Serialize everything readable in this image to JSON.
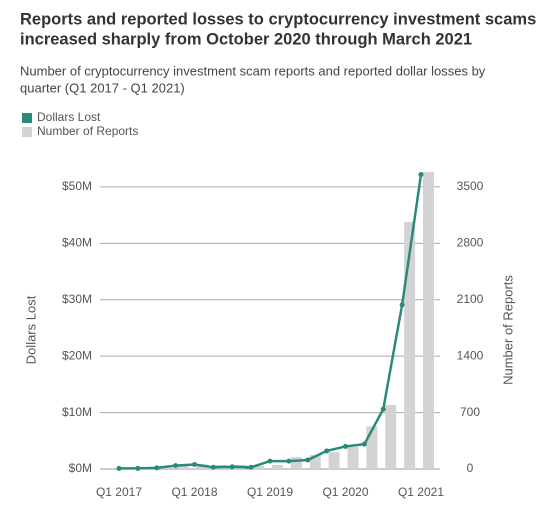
{
  "chart_data": {
    "type": "bar-line",
    "title": [
      "Reports and reported losses to cryptocurrency investment scams",
      "increased sharply from October 2020 through March 2021"
    ],
    "subtitle": [
      "Number of cryptocurrency investment scam reports and reported dollar losses by",
      "quarter (Q1 2017 - Q1 2021)"
    ],
    "categories": [
      "Q1 2017",
      null,
      null,
      null,
      "Q1 2018",
      null,
      null,
      null,
      "Q1 2019",
      null,
      null,
      null,
      "Q1 2020",
      null,
      null,
      null,
      "Q1 2021"
    ],
    "series": [
      {
        "name": "Dollars Lost",
        "color": "#2a8a7a",
        "kind": "line",
        "axis": "y",
        "values": [
          0.1,
          0.1,
          0.2,
          0.6,
          0.8,
          0.3,
          0.4,
          0.3,
          1.4,
          1.4,
          1.6,
          3.2,
          4.0,
          4.4,
          10.6,
          29.1,
          52.2
        ]
      },
      {
        "name": "Number of Reports",
        "color": "#d3d3d3",
        "kind": "bar",
        "axis": "y2",
        "values": [
          20,
          20,
          20,
          40,
          60,
          50,
          50,
          40,
          50,
          150,
          174,
          211,
          273,
          530,
          794,
          3066,
          3686
        ]
      }
    ],
    "ylabel": "Dollars Lost",
    "y2label": "Number of Reports",
    "ylim": [
      0,
      53
    ],
    "yticks": [
      {
        "value": 0,
        "label": "$0M"
      },
      {
        "value": 10,
        "label": "$10M"
      },
      {
        "value": 20,
        "label": "$20M"
      },
      {
        "value": 30,
        "label": "$30M"
      },
      {
        "value": 40,
        "label": "$40M"
      },
      {
        "value": 50,
        "label": "$50M"
      }
    ],
    "y2lim": [
      0,
      3710
    ],
    "y2ticks": [
      0,
      700,
      1400,
      2100,
      2800,
      3500
    ],
    "grid": true,
    "legend": "top-left"
  }
}
